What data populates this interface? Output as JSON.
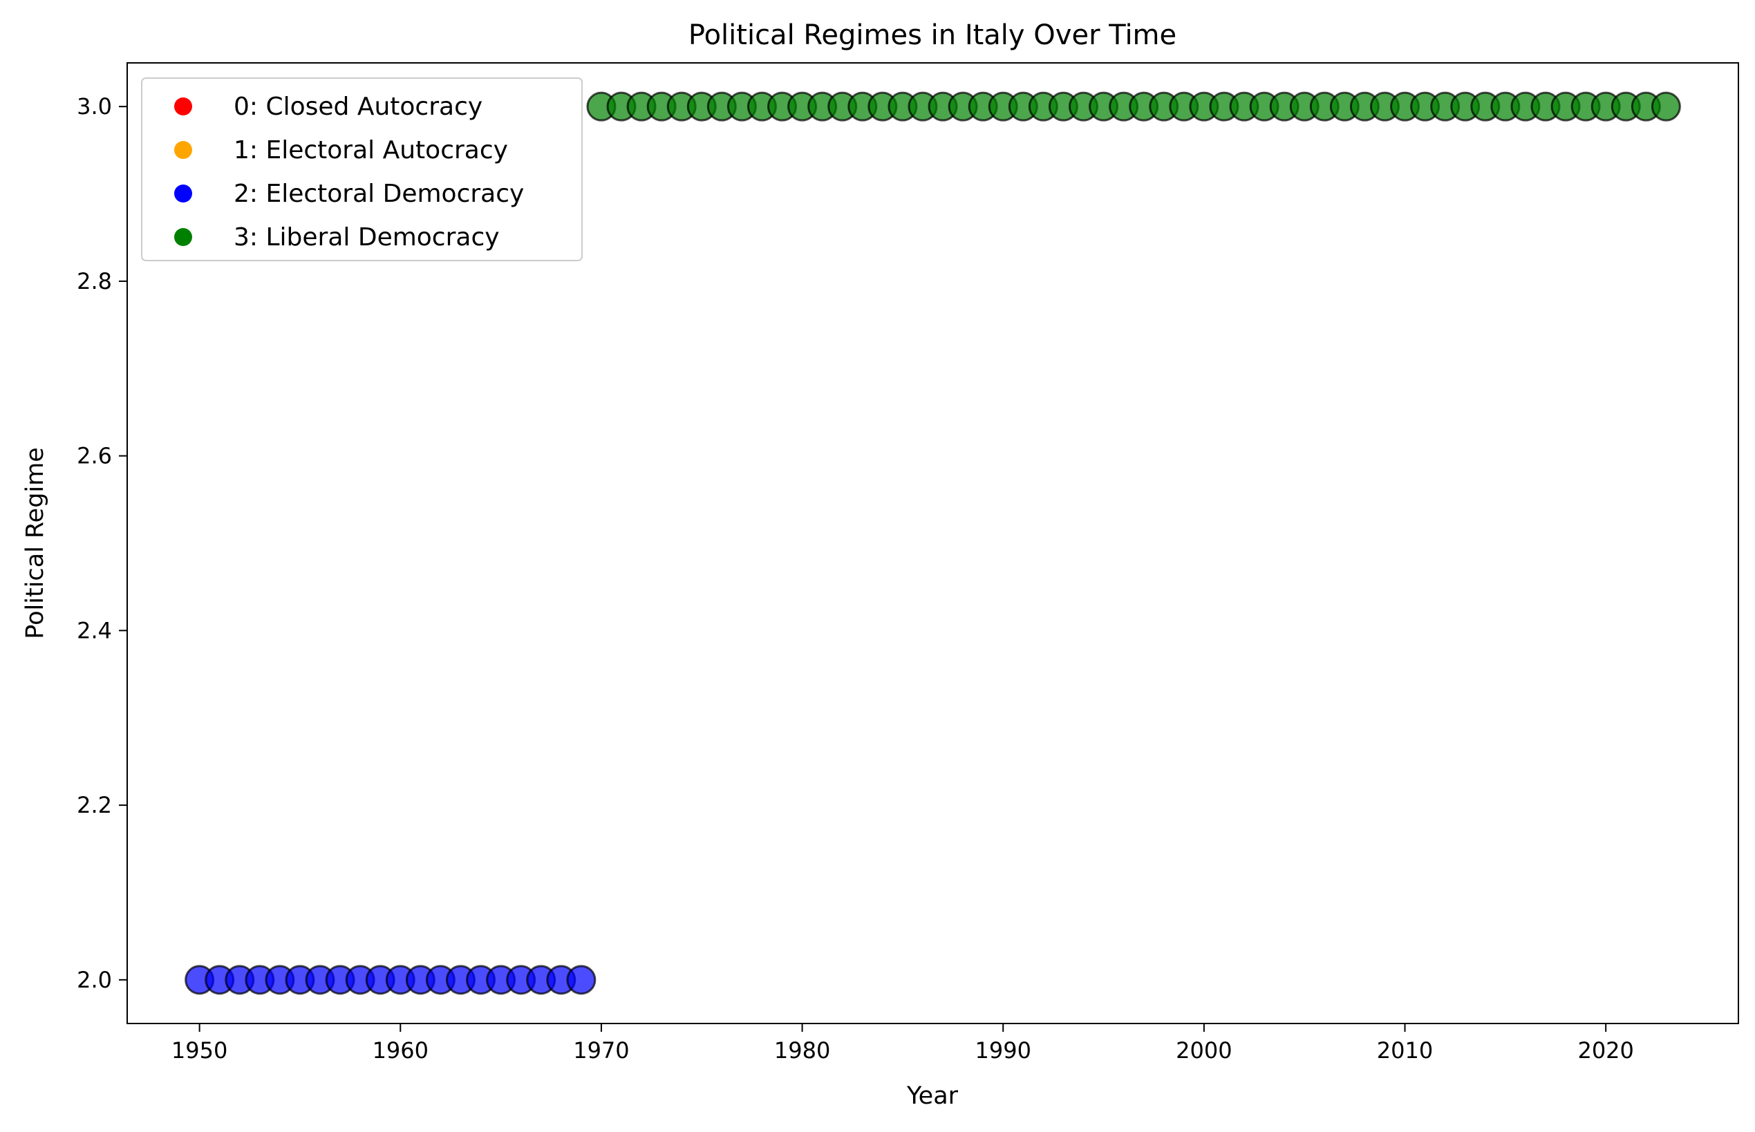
{
  "chart_data": {
    "type": "scatter",
    "title": "Political Regimes in Italy Over Time",
    "xlabel": "Year",
    "ylabel": "Political Regime",
    "xlim": [
      1946.4,
      2026.6
    ],
    "ylim": [
      1.95,
      3.05
    ],
    "xticks": [
      1950,
      1960,
      1970,
      1980,
      1990,
      2000,
      2010,
      2020
    ],
    "yticks": [
      2.0,
      2.2,
      2.4,
      2.6,
      2.8,
      3.0
    ],
    "ytick_labels": [
      "2.0",
      "2.2",
      "2.4",
      "2.6",
      "2.8",
      "3.0"
    ],
    "grid": false,
    "legend_position": "top-left",
    "colors": {
      "0": "#ff0000",
      "1": "#ffa500",
      "2": "#0000ff",
      "3": "#008000"
    },
    "legend": [
      {
        "regime": 0,
        "label": "0: Closed Autocracy"
      },
      {
        "regime": 1,
        "label": "1: Electoral Autocracy"
      },
      {
        "regime": 2,
        "label": "2: Electoral Democracy"
      },
      {
        "regime": 3,
        "label": "3: Liberal Democracy"
      }
    ],
    "series": [
      {
        "regime": 2,
        "x": [
          1950,
          1951,
          1952,
          1953,
          1954,
          1955,
          1956,
          1957,
          1958,
          1959,
          1960,
          1961,
          1962,
          1963,
          1964,
          1965,
          1966,
          1967,
          1968,
          1969
        ],
        "y": 2
      },
      {
        "regime": 3,
        "x": [
          1970,
          1971,
          1972,
          1973,
          1974,
          1975,
          1976,
          1977,
          1978,
          1979,
          1980,
          1981,
          1982,
          1983,
          1984,
          1985,
          1986,
          1987,
          1988,
          1989,
          1990,
          1991,
          1992,
          1993,
          1994,
          1995,
          1996,
          1997,
          1998,
          1999,
          2000,
          2001,
          2002,
          2003,
          2004,
          2005,
          2006,
          2007,
          2008,
          2009,
          2010,
          2011,
          2012,
          2013,
          2014,
          2015,
          2016,
          2017,
          2018,
          2019,
          2020,
          2021,
          2022,
          2023
        ],
        "y": 3
      }
    ]
  }
}
